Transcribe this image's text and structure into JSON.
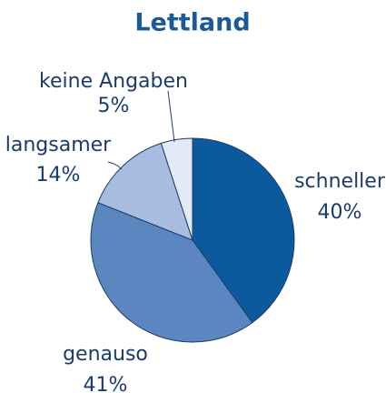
{
  "chart_data": {
    "type": "pie",
    "title": "Lettland",
    "categories": [
      "schneller",
      "genauso",
      "langsamer",
      "keine Angaben"
    ],
    "values": [
      40,
      41,
      14,
      5
    ],
    "value_labels": [
      "40%",
      "41%",
      "14%",
      "5%"
    ],
    "colors": [
      "#0b5a9e",
      "#5b86c0",
      "#a8bcdf",
      "#e3e9f5"
    ]
  }
}
